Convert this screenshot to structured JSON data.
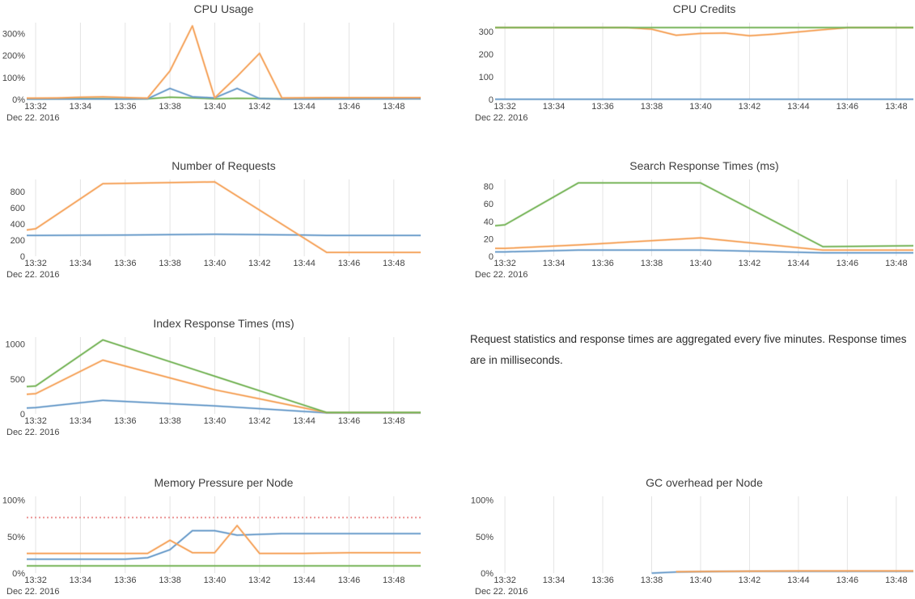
{
  "note": {
    "text": "Request statistics and response times are aggregated every five minutes. Response times are in milliseconds."
  },
  "axis": {
    "date_label": "Dec 22. 2016",
    "x_tick_labels": [
      "13:32",
      "13:34",
      "13:36",
      "13:38",
      "13:40",
      "13:42",
      "13:44",
      "13:46",
      "13:48"
    ]
  },
  "colors": {
    "blue": "#6d9ecb",
    "orange": "#f5a45d",
    "green": "#77b55a",
    "red": "#e98989",
    "grid": "#e4e4e4",
    "label": "#444444",
    "title": "#3d3d3d"
  },
  "chart_data": [
    {
      "type": "line",
      "title": "CPU Usage",
      "xlabel": "",
      "ylabel": "",
      "xlim": [
        -0.4,
        17.2
      ],
      "ylim": [
        0,
        350
      ],
      "grid": "vertical-only",
      "legend": "none",
      "x_ticks": [
        0,
        2,
        4,
        6,
        8,
        10,
        12,
        14,
        16
      ],
      "x_tick_labels": [
        "13:32",
        "13:34",
        "13:36",
        "13:38",
        "13:40",
        "13:42",
        "13:44",
        "13:46",
        "13:48"
      ],
      "y_ticks": [
        {
          "v": 0,
          "label": "0%"
        },
        {
          "v": 100,
          "label": "100%"
        },
        {
          "v": 200,
          "label": "200%"
        },
        {
          "v": 300,
          "label": "300%"
        }
      ],
      "series": [
        {
          "name": "green-series",
          "color": "green",
          "points": [
            [
              -0.4,
              3
            ],
            [
              0,
              3
            ],
            [
              2,
              4
            ],
            [
              4,
              3
            ],
            [
              5,
              3
            ],
            [
              6,
              10
            ],
            [
              7,
              7
            ],
            [
              8,
              3
            ],
            [
              9,
              5
            ],
            [
              10,
              4
            ],
            [
              11,
              3
            ],
            [
              13,
              4
            ],
            [
              17.2,
              4
            ]
          ]
        },
        {
          "name": "blue-series",
          "color": "blue",
          "points": [
            [
              -0.4,
              2
            ],
            [
              0,
              2
            ],
            [
              4,
              2
            ],
            [
              5,
              3
            ],
            [
              6,
              50
            ],
            [
              7,
              12
            ],
            [
              8,
              7
            ],
            [
              9,
              50
            ],
            [
              10,
              4
            ],
            [
              11,
              2
            ],
            [
              17.2,
              3
            ]
          ]
        },
        {
          "name": "orange-series",
          "color": "orange",
          "points": [
            [
              -0.4,
              6
            ],
            [
              0,
              6
            ],
            [
              1,
              7
            ],
            [
              2,
              10
            ],
            [
              3,
              12
            ],
            [
              4,
              9
            ],
            [
              5,
              6
            ],
            [
              6,
              130
            ],
            [
              7,
              335
            ],
            [
              8,
              7
            ],
            [
              9,
              105
            ],
            [
              10,
              210
            ],
            [
              11,
              7
            ],
            [
              13,
              8
            ],
            [
              17.2,
              8
            ]
          ]
        }
      ]
    },
    {
      "type": "line",
      "title": "CPU Credits",
      "xlabel": "",
      "ylabel": "",
      "xlim": [
        -0.4,
        16.7
      ],
      "ylim": [
        0,
        340
      ],
      "grid": "vertical-only",
      "legend": "none",
      "x_ticks": [
        0,
        2,
        4,
        6,
        8,
        10,
        12,
        14,
        16
      ],
      "x_tick_labels": [
        "13:32",
        "13:34",
        "13:36",
        "13:38",
        "13:40",
        "13:42",
        "13:44",
        "13:46",
        "13:48"
      ],
      "y_ticks": [
        {
          "v": 0,
          "label": "0"
        },
        {
          "v": 100,
          "label": "100"
        },
        {
          "v": 200,
          "label": "200"
        },
        {
          "v": 300,
          "label": "300"
        }
      ],
      "series": [
        {
          "name": "blue-series",
          "color": "blue",
          "points": [
            [
              -0.4,
              1
            ],
            [
              16.7,
              1
            ]
          ]
        },
        {
          "name": "orange-series",
          "color": "orange",
          "points": [
            [
              -0.4,
              318
            ],
            [
              5,
              318
            ],
            [
              6,
              311
            ],
            [
              7,
              284
            ],
            [
              8,
              292
            ],
            [
              9,
              294
            ],
            [
              10,
              282
            ],
            [
              11,
              289
            ],
            [
              12,
              299
            ],
            [
              13,
              309
            ],
            [
              13.8,
              316
            ],
            [
              14,
              318
            ],
            [
              16.7,
              318
            ]
          ]
        },
        {
          "name": "green-series",
          "color": "green",
          "points": [
            [
              -0.4,
              318
            ],
            [
              16.7,
              318
            ]
          ]
        }
      ]
    },
    {
      "type": "line",
      "title": "Number of Requests",
      "xlabel": "",
      "ylabel": "",
      "xlim": [
        -0.4,
        17.2
      ],
      "ylim": [
        0,
        950
      ],
      "grid": "vertical-only",
      "legend": "none",
      "x_ticks": [
        0,
        2,
        4,
        6,
        8,
        10,
        12,
        14,
        16
      ],
      "x_tick_labels": [
        "13:32",
        "13:34",
        "13:36",
        "13:38",
        "13:40",
        "13:42",
        "13:44",
        "13:46",
        "13:48"
      ],
      "y_ticks": [
        {
          "v": 0,
          "label": "0"
        },
        {
          "v": 200,
          "label": "200"
        },
        {
          "v": 400,
          "label": "400"
        },
        {
          "v": 600,
          "label": "600"
        },
        {
          "v": 800,
          "label": "800"
        }
      ],
      "series": [
        {
          "name": "blue-series",
          "color": "blue",
          "points": [
            [
              -0.4,
              257
            ],
            [
              0,
              257
            ],
            [
              4,
              262
            ],
            [
              6,
              268
            ],
            [
              8,
              272
            ],
            [
              10,
              268
            ],
            [
              12,
              262
            ],
            [
              13,
              258
            ],
            [
              17.2,
              258
            ]
          ]
        },
        {
          "name": "orange-series",
          "color": "orange",
          "points": [
            [
              -0.4,
              325
            ],
            [
              0,
              340
            ],
            [
              3,
              897
            ],
            [
              8,
              920
            ],
            [
              13,
              48
            ],
            [
              17.2,
              48
            ]
          ]
        }
      ]
    },
    {
      "type": "line",
      "title": "Search Response Times (ms)",
      "xlabel": "",
      "ylabel": "",
      "xlim": [
        -0.4,
        16.7
      ],
      "ylim": [
        0,
        88
      ],
      "grid": "vertical-only",
      "legend": "none",
      "x_ticks": [
        0,
        2,
        4,
        6,
        8,
        10,
        12,
        14,
        16
      ],
      "x_tick_labels": [
        "13:32",
        "13:34",
        "13:36",
        "13:38",
        "13:40",
        "13:42",
        "13:44",
        "13:46",
        "13:48"
      ],
      "y_ticks": [
        {
          "v": 0,
          "label": "0"
        },
        {
          "v": 20,
          "label": "20"
        },
        {
          "v": 40,
          "label": "40"
        },
        {
          "v": 60,
          "label": "60"
        },
        {
          "v": 80,
          "label": "80"
        }
      ],
      "series": [
        {
          "name": "blue-series",
          "color": "blue",
          "points": [
            [
              -0.4,
              5
            ],
            [
              0,
              5
            ],
            [
              3,
              7
            ],
            [
              8,
              7
            ],
            [
              13,
              4
            ],
            [
              16.7,
              4
            ]
          ]
        },
        {
          "name": "orange-series",
          "color": "orange",
          "points": [
            [
              -0.4,
              9
            ],
            [
              0,
              9
            ],
            [
              3,
              13
            ],
            [
              8,
              21
            ],
            [
              13,
              7
            ],
            [
              16.7,
              7
            ]
          ]
        },
        {
          "name": "green-series",
          "color": "green",
          "points": [
            [
              -0.4,
              35
            ],
            [
              0,
              36
            ],
            [
              3,
              84
            ],
            [
              8,
              84
            ],
            [
              13,
              11
            ],
            [
              16.7,
              12
            ]
          ]
        }
      ]
    },
    {
      "type": "line",
      "title": "Index Response Times (ms)",
      "xlabel": "",
      "ylabel": "",
      "xlim": [
        -0.4,
        17.2
      ],
      "ylim": [
        0,
        1100
      ],
      "grid": "vertical-only",
      "legend": "none",
      "x_ticks": [
        0,
        2,
        4,
        6,
        8,
        10,
        12,
        14,
        16
      ],
      "x_tick_labels": [
        "13:32",
        "13:34",
        "13:36",
        "13:38",
        "13:40",
        "13:42",
        "13:44",
        "13:46",
        "13:48"
      ],
      "y_ticks": [
        {
          "v": 0,
          "label": "0"
        },
        {
          "v": 500,
          "label": "500"
        },
        {
          "v": 1000,
          "label": "1000"
        }
      ],
      "series": [
        {
          "name": "blue-series",
          "color": "blue",
          "points": [
            [
              -0.4,
              85
            ],
            [
              0,
              90
            ],
            [
              3,
              195
            ],
            [
              8,
              115
            ],
            [
              13,
              15
            ],
            [
              17.2,
              15
            ]
          ]
        },
        {
          "name": "orange-series",
          "color": "orange",
          "points": [
            [
              -0.4,
              280
            ],
            [
              0,
              290
            ],
            [
              3,
              770
            ],
            [
              8,
              345
            ],
            [
              10,
              215
            ],
            [
              13,
              18
            ],
            [
              17.2,
              18
            ]
          ]
        },
        {
          "name": "green-series",
          "color": "green",
          "points": [
            [
              -0.4,
              390
            ],
            [
              0,
              400
            ],
            [
              3,
              1060
            ],
            [
              8,
              540
            ],
            [
              13,
              20
            ],
            [
              17.2,
              20
            ]
          ]
        }
      ]
    },
    {
      "type": "line",
      "title": "Memory Pressure per Node",
      "xlabel": "",
      "ylabel": "",
      "xlim": [
        -0.4,
        17.2
      ],
      "ylim": [
        0,
        105
      ],
      "grid": "vertical-only",
      "legend": "none",
      "x_ticks": [
        0,
        2,
        4,
        6,
        8,
        10,
        12,
        14,
        16
      ],
      "x_tick_labels": [
        "13:32",
        "13:34",
        "13:36",
        "13:38",
        "13:40",
        "13:42",
        "13:44",
        "13:46",
        "13:48"
      ],
      "y_ticks": [
        {
          "v": 0,
          "label": "0%"
        },
        {
          "v": 50,
          "label": "50%"
        },
        {
          "v": 100,
          "label": "100%"
        }
      ],
      "series": [
        {
          "name": "threshold",
          "color": "red",
          "dash": true,
          "points": [
            [
              -0.4,
              76
            ],
            [
              17.2,
              76
            ]
          ]
        },
        {
          "name": "green-series",
          "color": "green",
          "points": [
            [
              -0.4,
              10
            ],
            [
              17.2,
              10
            ]
          ]
        },
        {
          "name": "blue-series",
          "color": "blue",
          "points": [
            [
              -0.4,
              19
            ],
            [
              4,
              19
            ],
            [
              5,
              21
            ],
            [
              6,
              32
            ],
            [
              7,
              58
            ],
            [
              8,
              58
            ],
            [
              9,
              52
            ],
            [
              10,
              53
            ],
            [
              11,
              54
            ],
            [
              17.2,
              54
            ]
          ]
        },
        {
          "name": "orange-series",
          "color": "orange",
          "points": [
            [
              -0.4,
              27
            ],
            [
              5,
              27
            ],
            [
              6,
              45
            ],
            [
              7,
              28
            ],
            [
              8,
              28
            ],
            [
              9,
              65
            ],
            [
              10,
              27
            ],
            [
              12,
              27
            ],
            [
              14,
              28
            ],
            [
              17.2,
              28
            ]
          ]
        }
      ]
    },
    {
      "type": "line",
      "title": "GC overhead per Node",
      "xlabel": "",
      "ylabel": "",
      "xlim": [
        -0.4,
        16.7
      ],
      "ylim": [
        0,
        105
      ],
      "grid": "vertical-only",
      "legend": "none",
      "x_ticks": [
        0,
        2,
        4,
        6,
        8,
        10,
        12,
        14,
        16
      ],
      "x_tick_labels": [
        "13:32",
        "13:34",
        "13:36",
        "13:38",
        "13:40",
        "13:42",
        "13:44",
        "13:46",
        "13:48"
      ],
      "y_ticks": [
        {
          "v": 0,
          "label": "0%"
        },
        {
          "v": 50,
          "label": "50%"
        },
        {
          "v": 100,
          "label": "100%"
        }
      ],
      "series": [
        {
          "name": "blue-series",
          "color": "blue",
          "points": [
            [
              6,
              0
            ],
            [
              7,
              1.5
            ],
            [
              8,
              2
            ],
            [
              10,
              2.5
            ],
            [
              16.7,
              2.5
            ]
          ]
        },
        {
          "name": "orange-series",
          "color": "orange",
          "points": [
            [
              7,
              2
            ],
            [
              9,
              2.5
            ],
            [
              12,
              3
            ],
            [
              16.7,
              3
            ]
          ]
        }
      ]
    }
  ]
}
